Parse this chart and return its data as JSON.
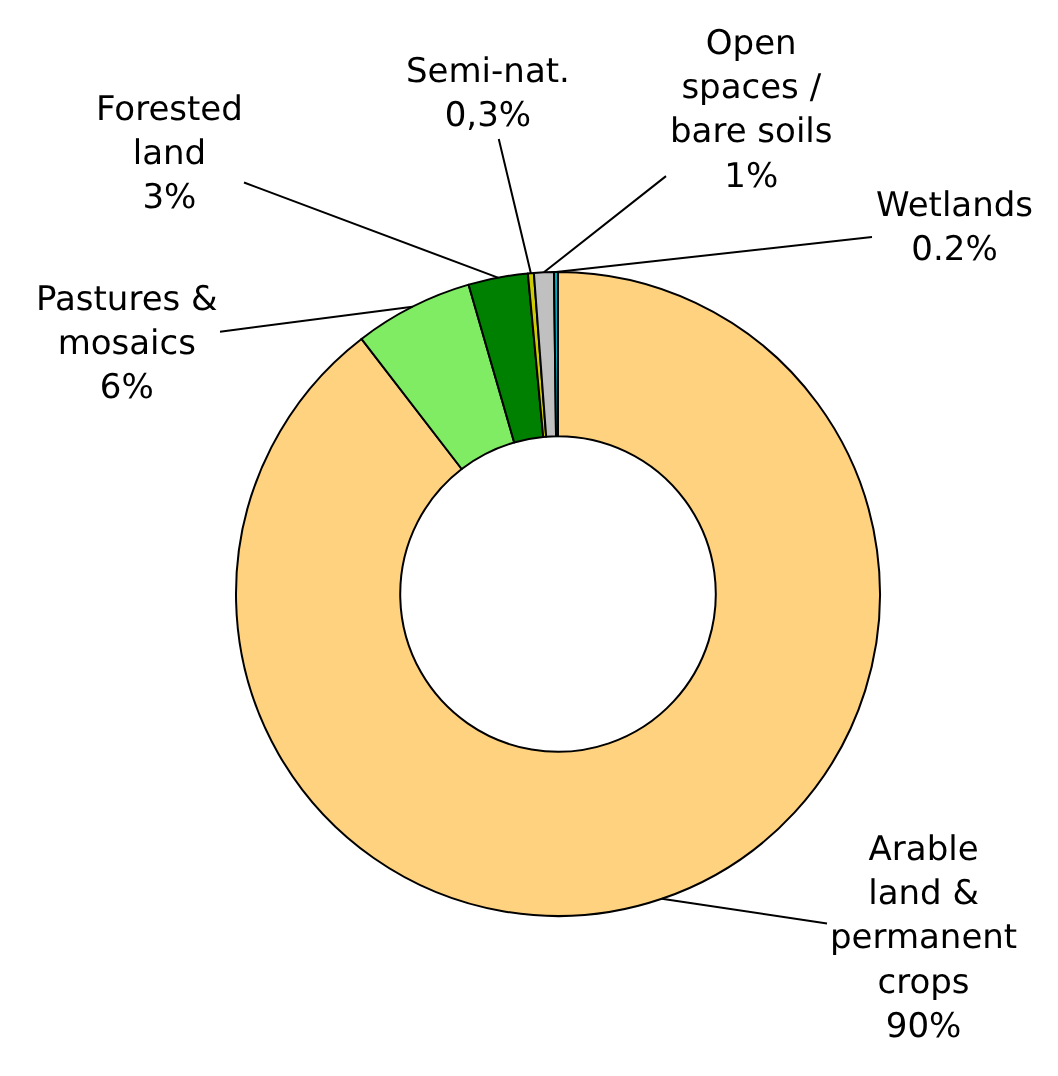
{
  "chart_data": {
    "type": "donut",
    "categories": [
      "Arable land & permanent crops",
      "Pastures & mosaics",
      "Forested land",
      "Semi-nat.",
      "Open spaces / bare soils",
      "Wetlands"
    ],
    "values": [
      90,
      6,
      3,
      0.3,
      1,
      0.2
    ],
    "value_labels": [
      "90%",
      "6%",
      "3%",
      "0,3%",
      "1%",
      "0.2%"
    ],
    "colors": [
      "#ffd280",
      "#80ec64",
      "#008000",
      "#cccc00",
      "#c0c0c0",
      "#00b0c0"
    ]
  }
}
